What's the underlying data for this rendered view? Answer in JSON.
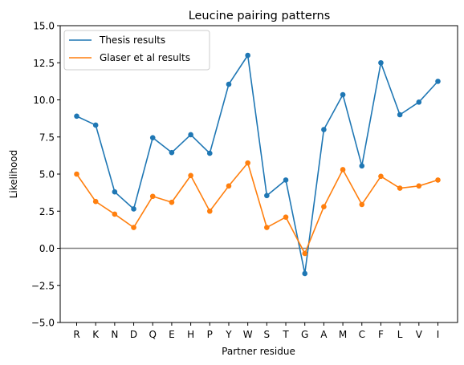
{
  "chart_data": {
    "type": "line",
    "title": "Leucine pairing patterns",
    "xlabel": "Partner residue",
    "ylabel": "Likelihood",
    "categories": [
      "R",
      "K",
      "N",
      "D",
      "Q",
      "E",
      "H",
      "P",
      "Y",
      "W",
      "S",
      "T",
      "G",
      "A",
      "M",
      "C",
      "F",
      "L",
      "V",
      "I"
    ],
    "ylim": [
      -5,
      15
    ],
    "yticks": [
      -5.0,
      -2.5,
      0.0,
      2.5,
      5.0,
      7.5,
      10.0,
      12.5,
      15.0
    ],
    "ytick_labels": [
      "−5.0",
      "−2.5",
      "0.0",
      "2.5",
      "5.0",
      "7.5",
      "10.0",
      "12.5",
      "15.0"
    ],
    "grid": false,
    "legend_position": "top-left",
    "reference_line": {
      "y": 0,
      "color": "#808080"
    },
    "series": [
      {
        "name": "Thesis results",
        "color": "#1f77b4",
        "values": [
          8.9,
          8.3,
          3.8,
          2.65,
          7.45,
          6.45,
          7.65,
          6.4,
          11.05,
          13.0,
          3.55,
          4.6,
          -1.7,
          8.0,
          10.35,
          5.55,
          12.5,
          9.0,
          9.85,
          11.25
        ]
      },
      {
        "name": "Glaser et al results",
        "color": "#ff7f0e",
        "values": [
          5.0,
          3.15,
          2.3,
          1.4,
          3.5,
          3.1,
          4.9,
          2.5,
          4.2,
          5.75,
          1.4,
          2.1,
          -0.35,
          2.8,
          5.3,
          2.95,
          4.85,
          4.05,
          4.2,
          4.6
        ]
      }
    ]
  }
}
